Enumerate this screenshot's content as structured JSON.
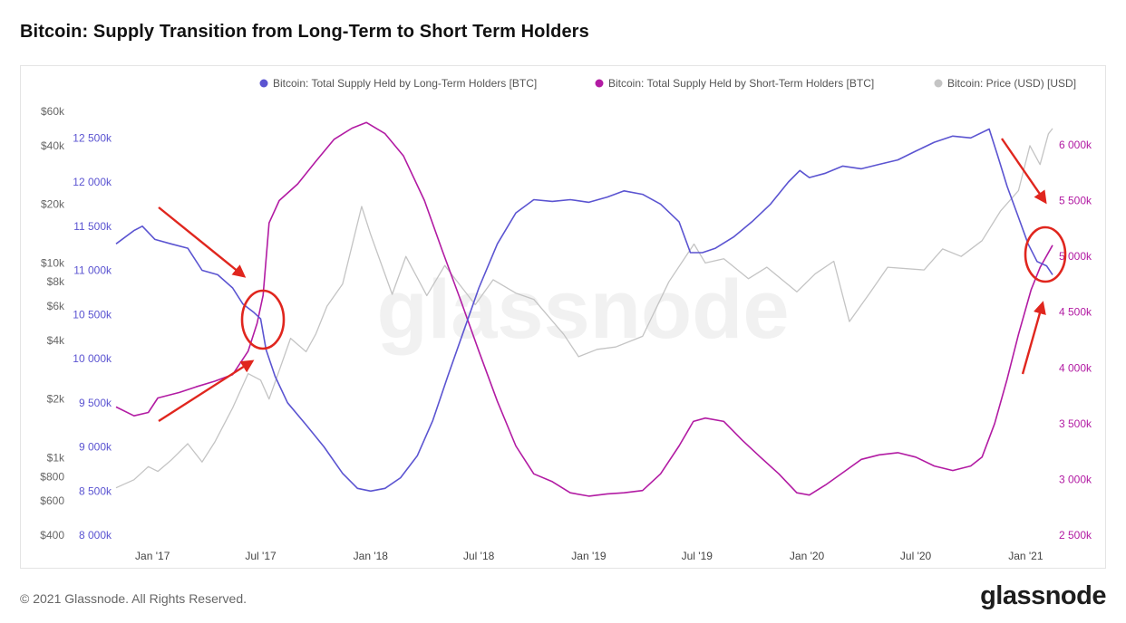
{
  "title": "Bitcoin: Supply Transition from Long-Term to Short Term Holders",
  "footer": {
    "copyright": "© 2021 Glassnode. All Rights Reserved.",
    "logo": "glassnode"
  },
  "watermark": "glassnode",
  "colors": {
    "lth": "#5B54D1",
    "sth": "#B21BA3",
    "price": "#C4C4C4",
    "annotation": "#E0261E",
    "price_axis": "#666666"
  },
  "chart_data": {
    "type": "line",
    "x_ticks": [
      {
        "date": "2017-01-01",
        "label": "Jan '17"
      },
      {
        "date": "2017-07-01",
        "label": "Jul '17"
      },
      {
        "date": "2018-01-01",
        "label": "Jan '18"
      },
      {
        "date": "2018-07-01",
        "label": "Jul '18"
      },
      {
        "date": "2019-01-01",
        "label": "Jan '19"
      },
      {
        "date": "2019-07-01",
        "label": "Jul '19"
      },
      {
        "date": "2020-01-01",
        "label": "Jan '20"
      },
      {
        "date": "2020-07-01",
        "label": "Jul '20"
      },
      {
        "date": "2021-01-01",
        "label": "Jan '21"
      }
    ],
    "xlim": [
      "2016-11-01",
      "2021-02-18"
    ],
    "axes": {
      "lth": {
        "ylim": [
          8000000,
          12800000
        ],
        "ticks": [
          {
            "value": 8000000,
            "label": "8 000k"
          },
          {
            "value": 8500000,
            "label": "8 500k"
          },
          {
            "value": 9000000,
            "label": "9 000k"
          },
          {
            "value": 9500000,
            "label": "9 500k"
          },
          {
            "value": 10000000,
            "label": "10 000k"
          },
          {
            "value": 10500000,
            "label": "10 500k"
          },
          {
            "value": 11000000,
            "label": "11 000k"
          },
          {
            "value": 11500000,
            "label": "11 500k"
          },
          {
            "value": 12000000,
            "label": "12 000k"
          },
          {
            "value": 12500000,
            "label": "12 500k"
          }
        ]
      },
      "sth": {
        "ylim": [
          2500000,
          6300000
        ],
        "ticks": [
          {
            "value": 2500000,
            "label": "2 500k"
          },
          {
            "value": 3000000,
            "label": "3 000k"
          },
          {
            "value": 3500000,
            "label": "3 500k"
          },
          {
            "value": 4000000,
            "label": "4 000k"
          },
          {
            "value": 4500000,
            "label": "4 500k"
          },
          {
            "value": 5000000,
            "label": "5 000k"
          },
          {
            "value": 5500000,
            "label": "5 500k"
          },
          {
            "value": 6000000,
            "label": "6 000k"
          }
        ]
      },
      "price": {
        "scale": "log",
        "ylim": [
          400,
          60000
        ],
        "ticks": [
          {
            "value": 400,
            "label": "$400"
          },
          {
            "value": 600,
            "label": "$600"
          },
          {
            "value": 800,
            "label": "$800"
          },
          {
            "value": 1000,
            "label": "$1k"
          },
          {
            "value": 2000,
            "label": "$2k"
          },
          {
            "value": 4000,
            "label": "$4k"
          },
          {
            "value": 6000,
            "label": "$6k"
          },
          {
            "value": 8000,
            "label": "$8k"
          },
          {
            "value": 10000,
            "label": "$10k"
          },
          {
            "value": 20000,
            "label": "$20k"
          },
          {
            "value": 40000,
            "label": "$40k"
          },
          {
            "value": 60000,
            "label": "$60k"
          }
        ]
      }
    },
    "legend_placement": "top-right",
    "series": [
      {
        "name": "Bitcoin: Total Supply Held by Long-Term Holders [BTC]",
        "axis": "lth",
        "points": [
          [
            "2016-11-01",
            11300000
          ],
          [
            "2016-12-01",
            11450000
          ],
          [
            "2016-12-15",
            11500000
          ],
          [
            "2017-01-05",
            11350000
          ],
          [
            "2017-02-01",
            11300000
          ],
          [
            "2017-03-01",
            11250000
          ],
          [
            "2017-03-25",
            11000000
          ],
          [
            "2017-04-20",
            10950000
          ],
          [
            "2017-05-15",
            10800000
          ],
          [
            "2017-06-01",
            10620000
          ],
          [
            "2017-06-20",
            10520000
          ],
          [
            "2017-07-01",
            10450000
          ],
          [
            "2017-07-10",
            10100000
          ],
          [
            "2017-07-25",
            9800000
          ],
          [
            "2017-08-15",
            9500000
          ],
          [
            "2017-09-15",
            9250000
          ],
          [
            "2017-10-15",
            9000000
          ],
          [
            "2017-11-15",
            8700000
          ],
          [
            "2017-12-10",
            8530000
          ],
          [
            "2018-01-01",
            8500000
          ],
          [
            "2018-01-25",
            8530000
          ],
          [
            "2018-02-20",
            8650000
          ],
          [
            "2018-03-20",
            8900000
          ],
          [
            "2018-04-15",
            9300000
          ],
          [
            "2018-05-10",
            9800000
          ],
          [
            "2018-06-05",
            10300000
          ],
          [
            "2018-07-01",
            10800000
          ],
          [
            "2018-08-01",
            11300000
          ],
          [
            "2018-09-01",
            11650000
          ],
          [
            "2018-10-01",
            11800000
          ],
          [
            "2018-11-01",
            11780000
          ],
          [
            "2018-12-01",
            11800000
          ],
          [
            "2019-01-01",
            11770000
          ],
          [
            "2019-02-01",
            11830000
          ],
          [
            "2019-03-01",
            11900000
          ],
          [
            "2019-04-01",
            11860000
          ],
          [
            "2019-05-01",
            11750000
          ],
          [
            "2019-06-01",
            11550000
          ],
          [
            "2019-06-20",
            11200000
          ],
          [
            "2019-07-10",
            11200000
          ],
          [
            "2019-08-01",
            11250000
          ],
          [
            "2019-09-01",
            11380000
          ],
          [
            "2019-10-01",
            11550000
          ],
          [
            "2019-11-01",
            11750000
          ],
          [
            "2019-12-01",
            12000000
          ],
          [
            "2019-12-20",
            12130000
          ],
          [
            "2020-01-05",
            12050000
          ],
          [
            "2020-02-01",
            12100000
          ],
          [
            "2020-03-01",
            12180000
          ],
          [
            "2020-04-01",
            12150000
          ],
          [
            "2020-05-01",
            12200000
          ],
          [
            "2020-06-01",
            12250000
          ],
          [
            "2020-07-01",
            12350000
          ],
          [
            "2020-08-01",
            12450000
          ],
          [
            "2020-09-01",
            12520000
          ],
          [
            "2020-10-01",
            12500000
          ],
          [
            "2020-11-01",
            12600000
          ],
          [
            "2020-11-15",
            12300000
          ],
          [
            "2020-12-01",
            11950000
          ],
          [
            "2020-12-20",
            11600000
          ],
          [
            "2021-01-05",
            11300000
          ],
          [
            "2021-01-20",
            11100000
          ],
          [
            "2021-02-05",
            11050000
          ],
          [
            "2021-02-15",
            10950000
          ]
        ]
      },
      {
        "name": "Bitcoin: Total Supply Held by Short-Term Holders [BTC]",
        "axis": "sth",
        "points": [
          [
            "2016-11-01",
            3650000
          ],
          [
            "2016-12-01",
            3570000
          ],
          [
            "2016-12-25",
            3600000
          ],
          [
            "2017-01-10",
            3730000
          ],
          [
            "2017-02-15",
            3780000
          ],
          [
            "2017-03-15",
            3830000
          ],
          [
            "2017-04-15",
            3880000
          ],
          [
            "2017-05-15",
            3940000
          ],
          [
            "2017-06-10",
            4150000
          ],
          [
            "2017-06-25",
            4400000
          ],
          [
            "2017-07-05",
            4650000
          ],
          [
            "2017-07-15",
            5300000
          ],
          [
            "2017-08-01",
            5500000
          ],
          [
            "2017-09-01",
            5650000
          ],
          [
            "2017-10-01",
            5850000
          ],
          [
            "2017-11-01",
            6050000
          ],
          [
            "2017-12-01",
            6150000
          ],
          [
            "2017-12-25",
            6200000
          ],
          [
            "2018-01-25",
            6100000
          ],
          [
            "2018-02-25",
            5900000
          ],
          [
            "2018-04-01",
            5500000
          ],
          [
            "2018-05-01",
            5050000
          ],
          [
            "2018-06-01",
            4600000
          ],
          [
            "2018-07-01",
            4150000
          ],
          [
            "2018-08-01",
            3700000
          ],
          [
            "2018-09-01",
            3300000
          ],
          [
            "2018-10-01",
            3050000
          ],
          [
            "2018-11-01",
            2980000
          ],
          [
            "2018-12-01",
            2880000
          ],
          [
            "2019-01-01",
            2850000
          ],
          [
            "2019-02-01",
            2870000
          ],
          [
            "2019-03-01",
            2880000
          ],
          [
            "2019-04-01",
            2900000
          ],
          [
            "2019-05-01",
            3050000
          ],
          [
            "2019-06-01",
            3300000
          ],
          [
            "2019-06-25",
            3520000
          ],
          [
            "2019-07-15",
            3550000
          ],
          [
            "2019-08-15",
            3520000
          ],
          [
            "2019-09-15",
            3350000
          ],
          [
            "2019-10-15",
            3200000
          ],
          [
            "2019-11-15",
            3050000
          ],
          [
            "2019-12-15",
            2880000
          ],
          [
            "2020-01-05",
            2860000
          ],
          [
            "2020-02-01",
            2950000
          ],
          [
            "2020-03-01",
            3060000
          ],
          [
            "2020-04-01",
            3180000
          ],
          [
            "2020-05-01",
            3220000
          ],
          [
            "2020-06-01",
            3240000
          ],
          [
            "2020-07-01",
            3200000
          ],
          [
            "2020-08-01",
            3120000
          ],
          [
            "2020-09-01",
            3080000
          ],
          [
            "2020-10-01",
            3120000
          ],
          [
            "2020-10-20",
            3200000
          ],
          [
            "2020-11-10",
            3500000
          ],
          [
            "2020-12-01",
            3900000
          ],
          [
            "2020-12-20",
            4300000
          ],
          [
            "2021-01-10",
            4700000
          ],
          [
            "2021-01-25",
            4900000
          ],
          [
            "2021-02-15",
            5100000
          ]
        ]
      },
      {
        "name": "Bitcoin: Price (USD) [USD]",
        "axis": "price",
        "points": [
          [
            "2016-11-01",
            700
          ],
          [
            "2016-12-01",
            770
          ],
          [
            "2016-12-25",
            900
          ],
          [
            "2017-01-10",
            850
          ],
          [
            "2017-02-01",
            970
          ],
          [
            "2017-03-01",
            1180
          ],
          [
            "2017-03-25",
            950
          ],
          [
            "2017-04-15",
            1200
          ],
          [
            "2017-05-15",
            1800
          ],
          [
            "2017-06-10",
            2700
          ],
          [
            "2017-07-01",
            2500
          ],
          [
            "2017-07-15",
            2000
          ],
          [
            "2017-08-01",
            2800
          ],
          [
            "2017-08-20",
            4100
          ],
          [
            "2017-09-15",
            3500
          ],
          [
            "2017-10-01",
            4300
          ],
          [
            "2017-10-20",
            6000
          ],
          [
            "2017-11-15",
            7800
          ],
          [
            "2017-12-17",
            19500
          ],
          [
            "2018-01-01",
            14000
          ],
          [
            "2018-02-06",
            6900
          ],
          [
            "2018-03-01",
            10800
          ],
          [
            "2018-04-05",
            6800
          ],
          [
            "2018-05-05",
            9700
          ],
          [
            "2018-06-25",
            6100
          ],
          [
            "2018-07-25",
            8200
          ],
          [
            "2018-09-01",
            7000
          ],
          [
            "2018-10-01",
            6500
          ],
          [
            "2018-11-20",
            4300
          ],
          [
            "2018-12-15",
            3300
          ],
          [
            "2019-01-15",
            3600
          ],
          [
            "2019-02-15",
            3700
          ],
          [
            "2019-04-01",
            4200
          ],
          [
            "2019-05-15",
            8000
          ],
          [
            "2019-06-26",
            12500
          ],
          [
            "2019-07-15",
            10000
          ],
          [
            "2019-08-15",
            10500
          ],
          [
            "2019-09-25",
            8300
          ],
          [
            "2019-10-26",
            9500
          ],
          [
            "2019-12-15",
            7100
          ],
          [
            "2020-01-15",
            8800
          ],
          [
            "2020-02-15",
            10200
          ],
          [
            "2020-03-12",
            5000
          ],
          [
            "2020-04-15",
            7000
          ],
          [
            "2020-05-15",
            9500
          ],
          [
            "2020-07-15",
            9200
          ],
          [
            "2020-08-15",
            11800
          ],
          [
            "2020-09-15",
            10800
          ],
          [
            "2020-10-20",
            13000
          ],
          [
            "2020-11-20",
            18500
          ],
          [
            "2020-12-20",
            23500
          ],
          [
            "2021-01-08",
            40000
          ],
          [
            "2021-01-25",
            32000
          ],
          [
            "2021-02-08",
            46000
          ],
          [
            "2021-02-15",
            49000
          ]
        ]
      }
    ]
  }
}
